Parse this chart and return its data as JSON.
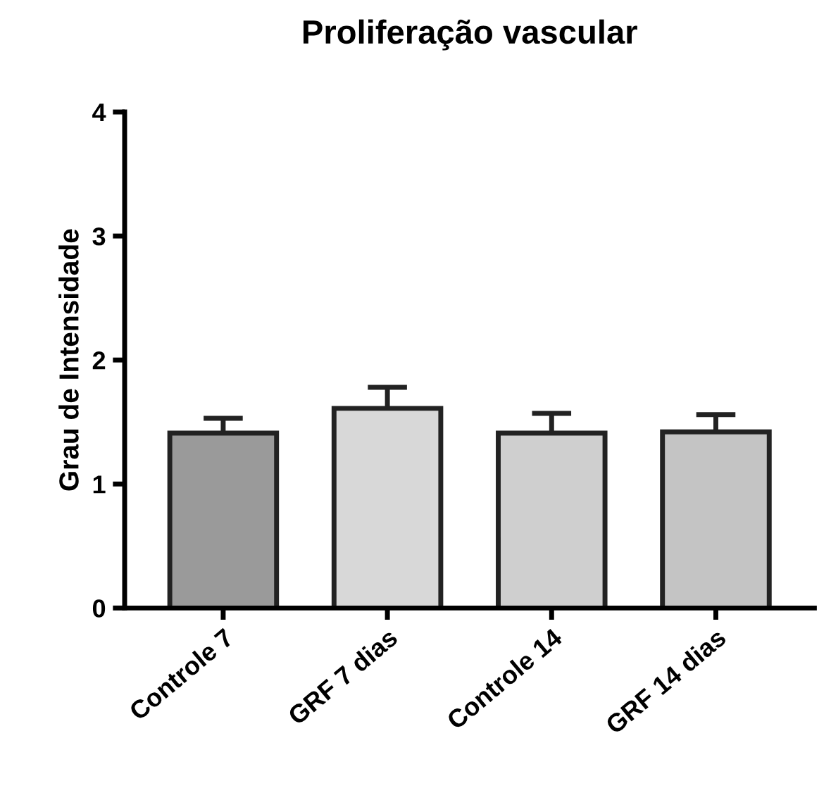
{
  "chart_data": {
    "type": "bar",
    "title": "Proliferação vascular",
    "ylabel": "Grau de Intensidade",
    "categories": [
      "Controle 7",
      "GRF 7 dias",
      "Controle 14",
      "GRF 14 dias"
    ],
    "values": [
      1.41,
      1.61,
      1.41,
      1.42
    ],
    "errors": [
      0.12,
      0.17,
      0.16,
      0.14
    ],
    "colors": [
      "#9a9a9a",
      "#d8d8d8",
      "#cfcfcf",
      "#c4c4c4"
    ],
    "ylim": [
      0,
      4
    ],
    "yticks": [
      0,
      1,
      2,
      3,
      4
    ],
    "grid": false,
    "legend": false
  }
}
